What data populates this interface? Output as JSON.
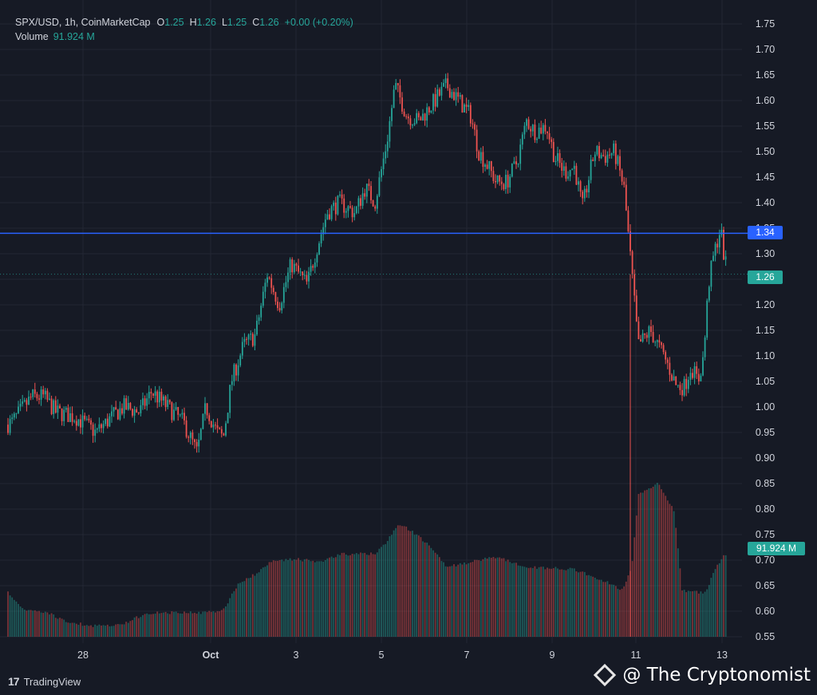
{
  "header": {
    "symbol": "SPX/USD, 1h, CoinMarketCap",
    "open_label": "O",
    "open": "1.25",
    "high_label": "H",
    "high": "1.26",
    "low_label": "L",
    "low": "1.25",
    "close_label": "C",
    "close": "1.26",
    "change": "+0.00 (+0.20%)",
    "volume_label": "Volume",
    "volume_value": "91.924 M"
  },
  "tags": {
    "level": "1.34",
    "last_price": "1.26",
    "volume": "91.924 M"
  },
  "branding": {
    "logo_mark": "17",
    "platform": "TradingView",
    "watermark": "@ The Cryptonomist"
  },
  "colors": {
    "background": "#161a25",
    "up": "#26a69a",
    "down": "#ef5350",
    "level_line": "#2962ff",
    "grid": "#232733"
  },
  "chart_data": {
    "type": "candlestick",
    "title": "SPX/USD, 1h, CoinMarketCap",
    "y_axis": {
      "min": 0.55,
      "max": 1.75,
      "ticks": [
        "1.75",
        "1.70",
        "1.65",
        "1.60",
        "1.55",
        "1.50",
        "1.45",
        "1.40",
        "1.35",
        "1.30",
        "1.25",
        "1.20",
        "1.15",
        "1.10",
        "1.05",
        "1.00",
        "0.95",
        "0.90",
        "0.85",
        "0.80",
        "0.75",
        "0.70",
        "0.65",
        "0.60",
        "0.55"
      ]
    },
    "x_axis": {
      "ticks": [
        "28",
        "Oct",
        "3",
        "5",
        "7",
        "9",
        "11",
        "13"
      ]
    },
    "horizontal_level": 1.34,
    "last_price": 1.26,
    "price_path": [
      [
        0,
        0.96
      ],
      [
        15,
        0.97
      ],
      [
        40,
        1.02
      ],
      [
        55,
        1.02
      ],
      [
        70,
        0.99
      ],
      [
        95,
        0.98
      ],
      [
        120,
        0.95
      ],
      [
        140,
        0.98
      ],
      [
        155,
        1.0
      ],
      [
        175,
        0.99
      ],
      [
        190,
        1.03
      ],
      [
        210,
        1.0
      ],
      [
        230,
        0.97
      ],
      [
        247,
        0.91
      ],
      [
        258,
        1.0
      ],
      [
        272,
        0.95
      ],
      [
        280,
        0.94
      ],
      [
        290,
        1.05
      ],
      [
        305,
        1.12
      ],
      [
        320,
        1.14
      ],
      [
        335,
        1.26
      ],
      [
        350,
        1.2
      ],
      [
        365,
        1.28
      ],
      [
        385,
        1.24
      ],
      [
        395,
        1.3
      ],
      [
        410,
        1.38
      ],
      [
        425,
        1.4
      ],
      [
        445,
        1.38
      ],
      [
        458,
        1.43
      ],
      [
        470,
        1.4
      ],
      [
        485,
        1.52
      ],
      [
        495,
        1.63
      ],
      [
        510,
        1.57
      ],
      [
        525,
        1.56
      ],
      [
        545,
        1.6
      ],
      [
        560,
        1.63
      ],
      [
        575,
        1.6
      ],
      [
        590,
        1.57
      ],
      [
        600,
        1.5
      ],
      [
        612,
        1.47
      ],
      [
        622,
        1.44
      ],
      [
        635,
        1.44
      ],
      [
        648,
        1.48
      ],
      [
        660,
        1.56
      ],
      [
        670,
        1.54
      ],
      [
        685,
        1.55
      ],
      [
        695,
        1.49
      ],
      [
        708,
        1.46
      ],
      [
        720,
        1.47
      ],
      [
        730,
        1.39
      ],
      [
        745,
        1.5
      ],
      [
        758,
        1.49
      ],
      [
        770,
        1.5
      ],
      [
        782,
        1.43
      ],
      [
        792,
        1.26
      ],
      [
        800,
        1.12
      ],
      [
        815,
        1.15
      ],
      [
        825,
        1.12
      ],
      [
        835,
        1.09
      ],
      [
        848,
        1.04
      ],
      [
        858,
        1.04
      ],
      [
        866,
        1.08
      ],
      [
        875,
        1.05
      ],
      [
        882,
        1.1
      ],
      [
        888,
        1.24
      ],
      [
        895,
        1.3
      ],
      [
        903,
        1.35
      ],
      [
        908,
        1.29
      ],
      [
        912,
        1.26
      ]
    ],
    "volume_path": [
      [
        0,
        0.645
      ],
      [
        10,
        0.64
      ],
      [
        30,
        0.605
      ],
      [
        60,
        0.6
      ],
      [
        80,
        0.585
      ],
      [
        110,
        0.575
      ],
      [
        150,
        0.575
      ],
      [
        185,
        0.6
      ],
      [
        250,
        0.6
      ],
      [
        280,
        0.605
      ],
      [
        300,
        0.66
      ],
      [
        320,
        0.675
      ],
      [
        340,
        0.7
      ],
      [
        370,
        0.705
      ],
      [
        400,
        0.7
      ],
      [
        430,
        0.715
      ],
      [
        470,
        0.715
      ],
      [
        485,
        0.74
      ],
      [
        500,
        0.775
      ],
      [
        510,
        0.765
      ],
      [
        525,
        0.75
      ],
      [
        545,
        0.72
      ],
      [
        560,
        0.69
      ],
      [
        580,
        0.695
      ],
      [
        620,
        0.71
      ],
      [
        660,
        0.69
      ],
      [
        720,
        0.685
      ],
      [
        760,
        0.66
      ],
      [
        780,
        0.645
      ],
      [
        792,
        0.69
      ],
      [
        800,
        0.83
      ],
      [
        825,
        0.855
      ],
      [
        845,
        0.8
      ],
      [
        855,
        0.645
      ],
      [
        870,
        0.64
      ],
      [
        885,
        0.64
      ],
      [
        895,
        0.685
      ],
      [
        912,
        0.72
      ]
    ]
  }
}
